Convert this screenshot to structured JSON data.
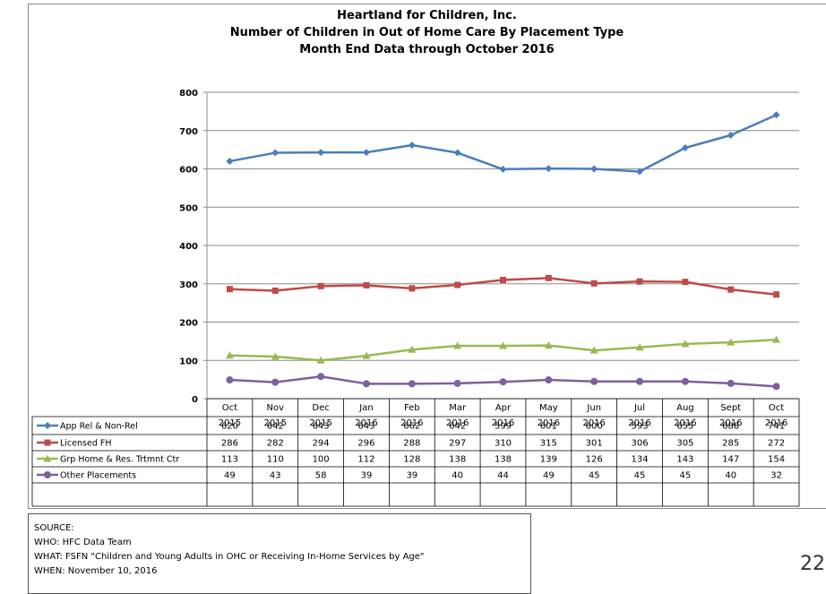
{
  "chart_data": {
    "type": "line",
    "title_lines": [
      "Heartland for Children, Inc.",
      "Number of Children in Out of Home Care By Placement Type",
      "Month End Data through October 2016"
    ],
    "categories": [
      [
        "Oct",
        "2015"
      ],
      [
        "Nov",
        "2015"
      ],
      [
        "Dec",
        "2015"
      ],
      [
        "Jan",
        "2016"
      ],
      [
        "Feb",
        "2016"
      ],
      [
        "Mar",
        "2016"
      ],
      [
        "Apr",
        "2016"
      ],
      [
        "May",
        "2016"
      ],
      [
        "Jun",
        "2016"
      ],
      [
        "Jul",
        "2016"
      ],
      [
        "Aug",
        "2016"
      ],
      [
        "Sept",
        "2016"
      ],
      [
        "Oct",
        "2016"
      ]
    ],
    "ylim": [
      0,
      800
    ],
    "yticks": [
      0,
      100,
      200,
      300,
      400,
      500,
      600,
      700,
      800
    ],
    "grid": true,
    "legend": "data-table-left",
    "series": [
      {
        "name": "App Rel & Non-Rel",
        "color": "#4a7ebb",
        "marker": "diamond",
        "values": [
          620,
          642,
          643,
          643,
          662,
          642,
          599,
          601,
          600,
          593,
          655,
          688,
          741
        ]
      },
      {
        "name": "Licensed FH",
        "color": "#be4b48",
        "marker": "square",
        "values": [
          286,
          282,
          294,
          296,
          288,
          297,
          310,
          315,
          301,
          306,
          305,
          285,
          272
        ]
      },
      {
        "name": "Grp Home & Res. Trtmnt Ctr",
        "color": "#98b954",
        "marker": "triangle",
        "values": [
          113,
          110,
          100,
          112,
          128,
          138,
          138,
          139,
          126,
          134,
          143,
          147,
          154
        ]
      },
      {
        "name": "Other Placements",
        "color": "#7d60a0",
        "marker": "circle",
        "values": [
          49,
          43,
          58,
          39,
          39,
          40,
          44,
          49,
          45,
          45,
          45,
          40,
          32
        ]
      }
    ]
  },
  "source": {
    "heading": "SOURCE:",
    "who": "WHO:   HFC Data Team",
    "what": "WHAT:  FSFN \"Children and Young Adults in OHC or Receiving In-Home Services by Age\"",
    "when": "WHEN:  November 10, 2016"
  },
  "page_number": "22"
}
